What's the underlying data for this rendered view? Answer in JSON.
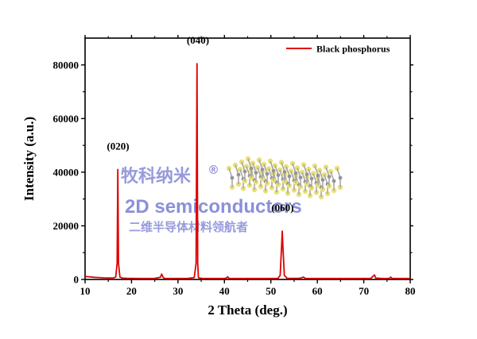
{
  "chart_data": {
    "type": "line",
    "xlabel": "2 Theta (deg.)",
    "ylabel": "Intensity (a.u.)",
    "xlim": [
      10,
      80
    ],
    "ylim": [
      0,
      90000
    ],
    "x_ticks": [
      10,
      20,
      30,
      40,
      50,
      60,
      70,
      80
    ],
    "y_ticks": [
      0,
      20000,
      40000,
      60000,
      80000
    ],
    "y_tick_labels": [
      "0",
      "20000",
      "40000",
      "60000",
      "80000"
    ],
    "legend_position": "top-right",
    "grid": false,
    "series": [
      {
        "name": "Black phosphorus",
        "color": "#e00000",
        "x": [
          10,
          11,
          12,
          13,
          14,
          15,
          16,
          16.6,
          16.9,
          17.05,
          17.2,
          17.5,
          18,
          19,
          20,
          22,
          24,
          25,
          26.2,
          26.5,
          26.8,
          27.1,
          28,
          30,
          32,
          33.5,
          33.9,
          34.1,
          34.25,
          34.4,
          34.7,
          35.2,
          36,
          38,
          40,
          40.5,
          40.7,
          41,
          44,
          48,
          51.5,
          52,
          52.3,
          52.45,
          52.6,
          52.9,
          53.5,
          56,
          56.6,
          57,
          57.4,
          60,
          64,
          68,
          71.5,
          72,
          72.3,
          72.6,
          74,
          75.5,
          75.8,
          76.1,
          78,
          80
        ],
        "y": [
          1100,
          950,
          800,
          700,
          600,
          550,
          500,
          900,
          6000,
          41000,
          6000,
          900,
          500,
          420,
          400,
          380,
          380,
          390,
          800,
          2000,
          800,
          400,
          380,
          360,
          380,
          700,
          6000,
          80500,
          6000,
          700,
          500,
          400,
          380,
          380,
          380,
          600,
          1000,
          380,
          350,
          350,
          400,
          1500,
          12000,
          18000,
          12000,
          1500,
          450,
          400,
          600,
          900,
          400,
          350,
          350,
          350,
          400,
          1200,
          1700,
          500,
          350,
          400,
          900,
          400,
          350,
          350
        ]
      }
    ],
    "annotations": [
      {
        "text": "(020)",
        "x": 17.1,
        "y": 41000
      },
      {
        "text": "(040)",
        "x": 34.3,
        "y": 80500
      },
      {
        "text": "(060)",
        "x": 52.5,
        "y": 18000
      }
    ]
  },
  "watermark": {
    "brand_cjk": "牧科纳米",
    "registered_mark": "®",
    "title": "2D semiconductors",
    "slogan_cjk": "二维半导体材料领航者"
  }
}
